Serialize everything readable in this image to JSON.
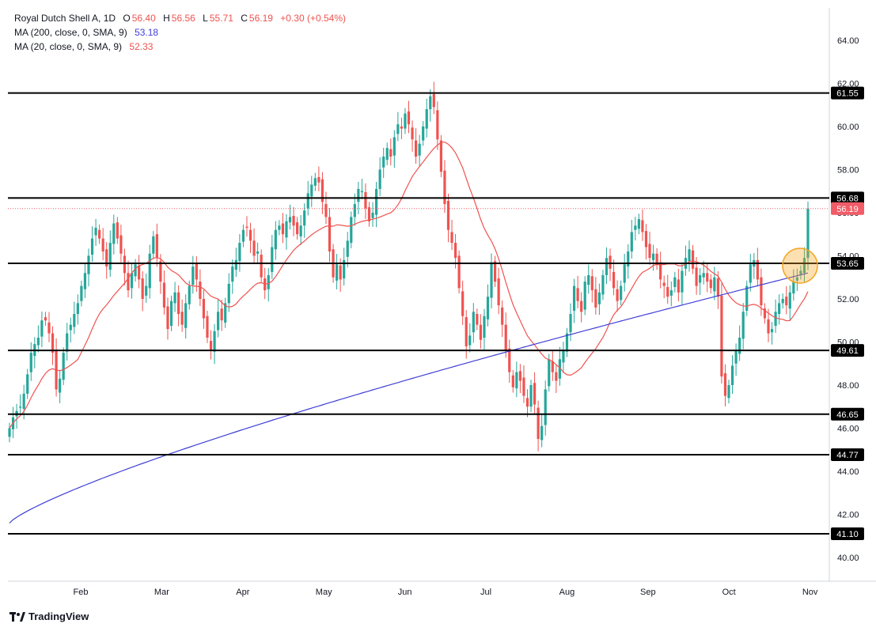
{
  "header": {
    "symbol": "Royal Dutch Shell A, 1D",
    "o_label": "O",
    "o_value": "56.40",
    "h_label": "H",
    "h_value": "56.56",
    "l_label": "L",
    "l_value": "55.71",
    "c_label": "C",
    "c_value": "56.19",
    "change": "+0.30 (+0.54%)",
    "ma200_label": "MA (200, close, 0, SMA, 9)",
    "ma200_value": "53.18",
    "ma20_label": "MA (20, close, 0, SMA, 9)",
    "ma20_value": "52.33"
  },
  "branding": {
    "logo_text": "TradingView",
    "logo_icon": "tradingview-logo-icon"
  },
  "colors": {
    "up": "#26a69a",
    "down": "#ef5350",
    "ma200": "#3f3fd6",
    "ma20": "#ef5350",
    "level": "#000000",
    "highlight": "#f5a623",
    "axis_text": "#131722",
    "price_tag": "#f25c68"
  },
  "chart_data": {
    "type": "candlestick",
    "title": "Royal Dutch Shell A, 1D",
    "y_ticks": [
      "40.00",
      "42.00",
      "44.00",
      "46.00",
      "48.00",
      "50.00",
      "52.00",
      "54.00",
      "56.00",
      "58.00",
      "60.00",
      "62.00",
      "64.00"
    ],
    "x_ticks": [
      "Feb",
      "Mar",
      "Apr",
      "May",
      "Jun",
      "Jul",
      "Aug",
      "Sep",
      "Oct",
      "Nov"
    ],
    "ylim": [
      38.9,
      65.5
    ],
    "horizontal_levels": [
      "61.55",
      "56.68",
      "53.65",
      "49.61",
      "46.65",
      "44.77",
      "41.10"
    ],
    "current_price": "56.19",
    "closes": [
      46.0,
      46.5,
      46.8,
      47.0,
      47.6,
      48.5,
      49.5,
      49.9,
      50.2,
      51.0,
      51.0,
      50.4,
      49.5,
      47.8,
      48.3,
      49.5,
      50.4,
      50.8,
      51.3,
      51.8,
      52.6,
      53.2,
      54.0,
      54.8,
      55.3,
      54.8,
      54.2,
      53.5,
      54.6,
      55.5,
      54.8,
      54.1,
      53.2,
      52.4,
      53.2,
      53.6,
      52.9,
      52.0,
      52.6,
      54.1,
      54.9,
      53.9,
      52.8,
      51.6,
      50.6,
      51.9,
      52.3,
      51.3,
      50.8,
      51.8,
      52.6,
      53.5,
      52.9,
      52.0,
      51.1,
      50.2,
      49.6,
      50.5,
      51.4,
      51.0,
      51.8,
      52.7,
      53.5,
      53.8,
      54.6,
      55.2,
      55.3,
      54.7,
      54.0,
      54.2,
      53.0,
      52.4,
      53.1,
      54.4,
      55.2,
      55.4,
      55.0,
      55.6,
      55.8,
      55.4,
      55.0,
      55.4,
      56.1,
      56.9,
      57.3,
      57.6,
      57.4,
      56.5,
      55.8,
      54.2,
      53.0,
      53.6,
      52.9,
      53.8,
      54.7,
      55.8,
      56.4,
      57.1,
      57.0,
      56.2,
      55.6,
      56.0,
      57.1,
      58.0,
      58.6,
      59.0,
      58.6,
      59.5,
      60.1,
      59.9,
      60.6,
      60.1,
      59.4,
      58.6,
      59.2,
      60.0,
      60.8,
      61.4,
      60.9,
      59.4,
      57.9,
      56.4,
      55.2,
      54.6,
      53.9,
      52.5,
      51.2,
      49.8,
      50.3,
      51.4,
      50.8,
      50.1,
      51.2,
      52.1,
      53.7,
      52.8,
      51.7,
      50.8,
      49.6,
      48.6,
      47.9,
      48.6,
      48.2,
      47.5,
      47.0,
      48.0,
      47.1,
      45.5,
      46.1,
      47.8,
      49.2,
      48.6,
      48.2,
      49.2,
      49.6,
      50.4,
      51.3,
      52.6,
      51.9,
      51.4,
      52.8,
      53.1,
      52.4,
      51.6,
      52.3,
      53.1,
      53.9,
      53.4,
      52.5,
      51.9,
      52.6,
      53.6,
      54.2,
      55.1,
      55.4,
      55.7,
      55.1,
      54.4,
      53.9,
      54.1,
      53.6,
      52.9,
      52.6,
      52.1,
      52.4,
      53.0,
      52.3,
      53.3,
      53.9,
      54.3,
      53.4,
      52.6,
      53.1,
      53.2,
      52.8,
      52.5,
      53.0,
      52.1,
      48.4,
      47.5,
      48.0,
      48.9,
      49.6,
      50.2,
      51.4,
      52.6,
      53.6,
      53.8,
      52.9,
      51.7,
      51.1,
      50.4,
      50.6,
      51.4,
      51.8,
      52.0,
      51.7,
      52.3,
      52.8,
      53.0,
      53.3,
      53.9,
      56.19
    ]
  }
}
